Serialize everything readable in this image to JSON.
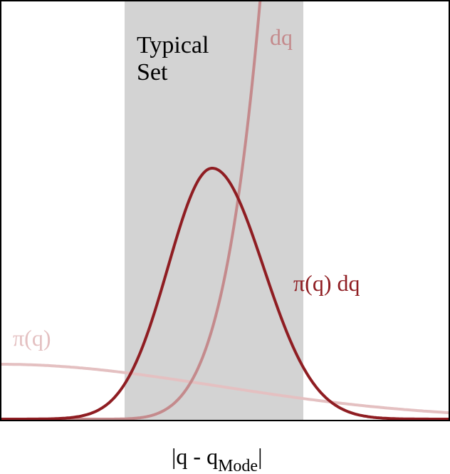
{
  "figure": {
    "region_label_line1": "Typical",
    "region_label_line2": "Set",
    "curve_labels": {
      "volume": "dq",
      "density": "π(q)",
      "product": "π(q) dq"
    },
    "xlabel_main": "|q - q",
    "xlabel_sub": "Mode",
    "xlabel_end": "|"
  },
  "colors": {
    "region": "#d3d3d3",
    "frame": "#000000",
    "volume": "#c48a8c",
    "density": "#e4c0c1",
    "product": "#8f1d22"
  }
}
